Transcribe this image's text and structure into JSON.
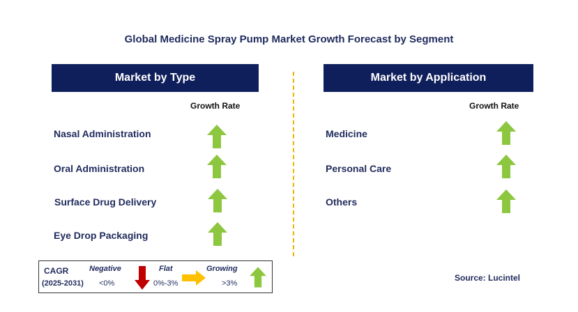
{
  "title": "Global Medicine Spray Pump Market Growth Forecast by Segment",
  "left": {
    "header": "Market by Type",
    "growth_label": "Growth Rate",
    "segments": [
      {
        "label": "Nasal Administration",
        "trend": "growing"
      },
      {
        "label": "Oral Administration",
        "trend": "growing"
      },
      {
        "label": "Surface Drug Delivery",
        "trend": "growing"
      },
      {
        "label": "Eye Drop Packaging",
        "trend": "growing"
      }
    ]
  },
  "right": {
    "header": "Market by Application",
    "growth_label": "Growth Rate",
    "segments": [
      {
        "label": "Medicine",
        "trend": "growing"
      },
      {
        "label": "Personal Care",
        "trend": "growing"
      },
      {
        "label": "Others",
        "trend": "growing"
      }
    ]
  },
  "legend": {
    "cagr": "CAGR",
    "period": "(2025-2031)",
    "negative": "Negative",
    "negative_range": "<0%",
    "flat": "Flat",
    "flat_range": "0%-3%",
    "growing": "Growing",
    "growing_range": ">3%"
  },
  "source": "Source: Lucintel",
  "colors": {
    "header_bg": "#0f1f5c",
    "growing": "#8dc63f",
    "negative": "#c00000",
    "flat": "#ffc000",
    "divider": "#f2b200"
  }
}
